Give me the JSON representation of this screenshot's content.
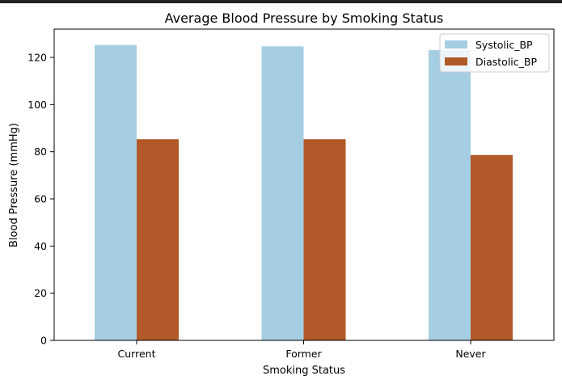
{
  "chart_data": {
    "type": "bar",
    "title": "Average Blood Pressure by Smoking Status",
    "xlabel": "Smoking Status",
    "ylabel": "Blood Pressure (mmHg)",
    "categories": [
      "Current",
      "Former",
      "Never"
    ],
    "series": [
      {
        "name": "Systolic_BP",
        "values": [
          125.3,
          124.7,
          123.1
        ],
        "color": "#a6cee3"
      },
      {
        "name": "Diastolic_BP",
        "values": [
          85.3,
          85.3,
          78.6
        ],
        "color": "#b15928"
      }
    ],
    "ylim": [
      0,
      132
    ],
    "yticks": [
      0,
      20,
      40,
      60,
      80,
      100,
      120
    ],
    "legend_position": "top-right",
    "grid": false
  }
}
